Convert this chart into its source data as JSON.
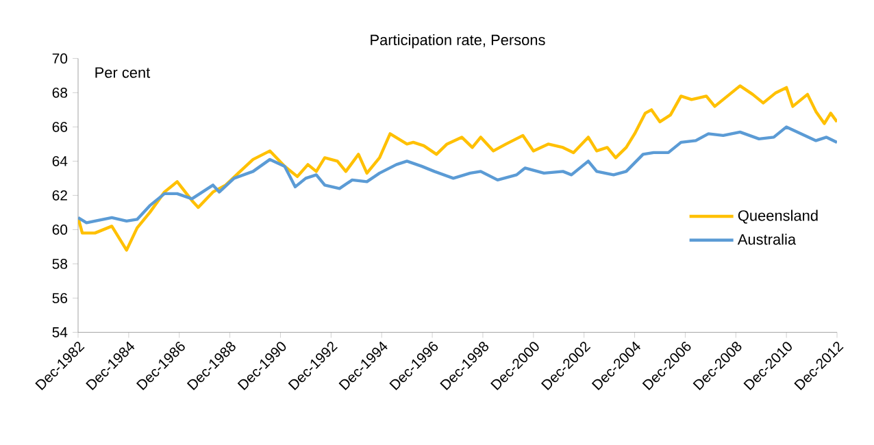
{
  "chart_data": {
    "type": "line",
    "title": "Participation rate, Persons",
    "ylabel": "Per cent",
    "xlim": [
      "1982-12",
      "2012-12"
    ],
    "xticks": [
      {
        "value": "1982-12",
        "label": "Dec-1982"
      },
      {
        "value": "1984-12",
        "label": "Dec-1984"
      },
      {
        "value": "1986-12",
        "label": "Dec-1986"
      },
      {
        "value": "1988-12",
        "label": "Dec-1988"
      },
      {
        "value": "1990-12",
        "label": "Dec-1990"
      },
      {
        "value": "1992-12",
        "label": "Dec-1992"
      },
      {
        "value": "1994-12",
        "label": "Dec-1994"
      },
      {
        "value": "1996-12",
        "label": "Dec-1996"
      },
      {
        "value": "1998-12",
        "label": "Dec-1998"
      },
      {
        "value": "2000-12",
        "label": "Dec-2000"
      },
      {
        "value": "2002-12",
        "label": "Dec-2002"
      },
      {
        "value": "2004-12",
        "label": "Dec-2004"
      },
      {
        "value": "2006-12",
        "label": "Dec-2006"
      },
      {
        "value": "2008-12",
        "label": "Dec-2008"
      },
      {
        "value": "2010-12",
        "label": "Dec-2010"
      },
      {
        "value": "2012-12",
        "label": "Dec-2012"
      }
    ],
    "ylim": [
      54,
      70
    ],
    "yticks": [
      54,
      56,
      58,
      60,
      62,
      64,
      66,
      68,
      70
    ],
    "legend": "right",
    "grid": false,
    "marker": "none",
    "line_style": "solid",
    "series": [
      {
        "name": "Queensland",
        "color": "#ffc000",
        "x": [
          "1982-12",
          "1983-02",
          "1983-08",
          "1984-04",
          "1984-11",
          "1985-04",
          "1985-10",
          "1986-05",
          "1986-11",
          "1987-06",
          "1987-09",
          "1988-04",
          "1988-10",
          "1989-04",
          "1989-11",
          "1990-07",
          "1991-02",
          "1991-08",
          "1992-01",
          "1992-05",
          "1992-09",
          "1993-03",
          "1993-07",
          "1994-01",
          "1994-05",
          "1994-11",
          "1995-04",
          "1995-08",
          "1995-12",
          "1996-03",
          "1996-08",
          "1997-02",
          "1997-07",
          "1998-02",
          "1998-07",
          "1998-11",
          "1999-05",
          "1999-11",
          "2000-07",
          "2000-12",
          "2001-07",
          "2002-02",
          "2002-07",
          "2003-02",
          "2003-06",
          "2003-11",
          "2004-03",
          "2004-08",
          "2004-12",
          "2005-05",
          "2005-08",
          "2005-12",
          "2006-05",
          "2006-10",
          "2007-03",
          "2007-10",
          "2008-02",
          "2008-09",
          "2009-02",
          "2009-08",
          "2010-01",
          "2010-07",
          "2010-12",
          "2011-03",
          "2011-10",
          "2012-02",
          "2012-06",
          "2012-09",
          "2012-12"
        ],
        "values": [
          60.7,
          59.8,
          59.8,
          60.2,
          58.8,
          60.1,
          61.0,
          62.2,
          62.8,
          61.7,
          61.3,
          62.2,
          62.6,
          63.3,
          64.1,
          64.6,
          63.7,
          63.1,
          63.8,
          63.4,
          64.2,
          64.0,
          63.4,
          64.4,
          63.3,
          64.2,
          65.6,
          65.3,
          65.0,
          65.1,
          64.9,
          64.4,
          65.0,
          65.4,
          64.8,
          65.4,
          64.6,
          65.0,
          65.5,
          64.6,
          65.0,
          64.8,
          64.5,
          65.4,
          64.6,
          64.8,
          64.2,
          64.8,
          65.6,
          66.8,
          67.0,
          66.3,
          66.7,
          67.8,
          67.6,
          67.8,
          67.2,
          67.9,
          68.4,
          67.9,
          67.4,
          68.0,
          68.3,
          67.2,
          67.9,
          66.9,
          66.2,
          66.8,
          66.3
        ]
      },
      {
        "name": "Australia",
        "color": "#5b9bd5",
        "x": [
          "1982-12",
          "1983-04",
          "1983-08",
          "1984-04",
          "1984-11",
          "1985-04",
          "1985-10",
          "1986-05",
          "1986-11",
          "1987-06",
          "1988-04",
          "1988-07",
          "1989-02",
          "1989-11",
          "1990-07",
          "1991-02",
          "1991-07",
          "1991-12",
          "1992-05",
          "1992-09",
          "1993-04",
          "1993-10",
          "1994-05",
          "1994-11",
          "1995-07",
          "1995-12",
          "1996-07",
          "1997-01",
          "1997-10",
          "1998-06",
          "1998-11",
          "1999-07",
          "2000-04",
          "2000-08",
          "2001-05",
          "2002-02",
          "2002-06",
          "2003-02",
          "2003-06",
          "2004-02",
          "2004-08",
          "2005-04",
          "2005-09",
          "2006-04",
          "2006-10",
          "2007-05",
          "2007-11",
          "2008-06",
          "2009-02",
          "2009-11",
          "2010-06",
          "2010-12",
          "2011-07",
          "2012-02",
          "2012-07",
          "2012-12"
        ],
        "values": [
          60.7,
          60.4,
          60.5,
          60.7,
          60.5,
          60.6,
          61.4,
          62.1,
          62.1,
          61.8,
          62.6,
          62.2,
          63.0,
          63.4,
          64.1,
          63.7,
          62.5,
          63.0,
          63.2,
          62.6,
          62.4,
          62.9,
          62.8,
          63.3,
          63.8,
          64.0,
          63.7,
          63.4,
          63.0,
          63.3,
          63.4,
          62.9,
          63.2,
          63.6,
          63.3,
          63.4,
          63.2,
          64.0,
          63.4,
          63.2,
          63.4,
          64.4,
          64.5,
          64.5,
          65.1,
          65.2,
          65.6,
          65.5,
          65.7,
          65.3,
          65.4,
          66.0,
          65.6,
          65.2,
          65.4,
          65.1
        ]
      }
    ]
  }
}
